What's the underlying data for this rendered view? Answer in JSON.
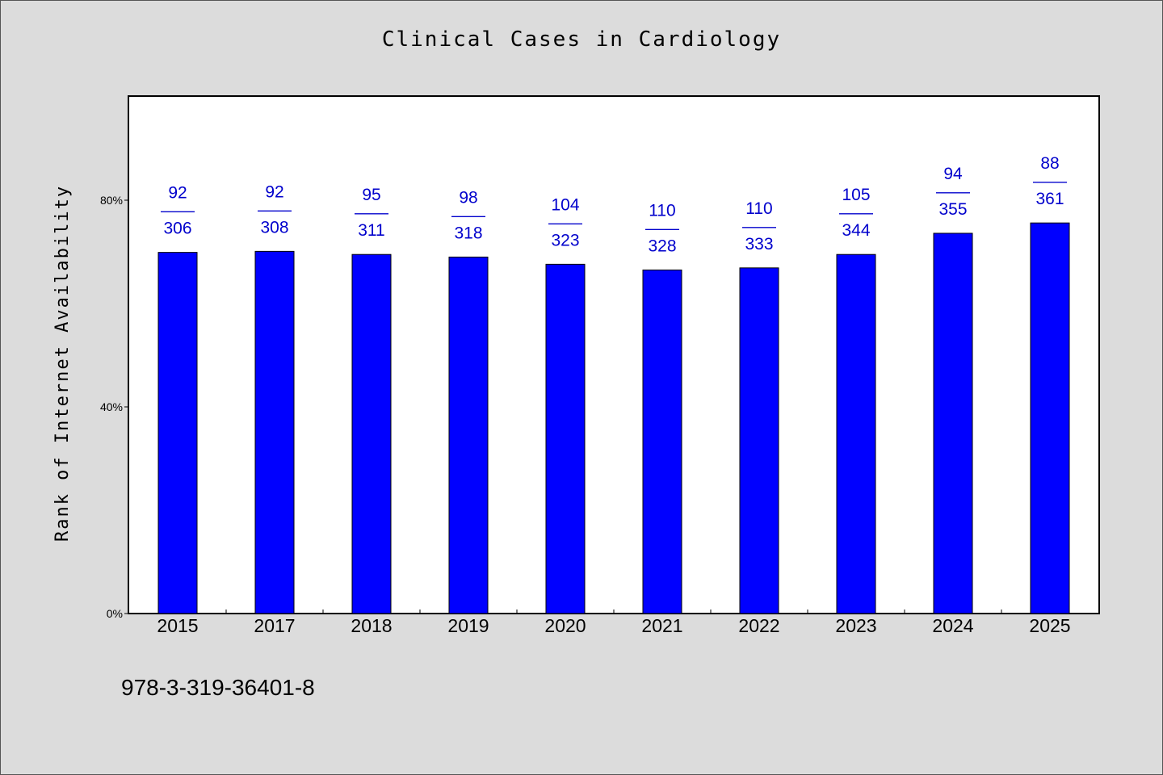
{
  "chart_data": {
    "type": "bar",
    "title": "Clinical Cases in Cardiology",
    "ylabel": "Rank of Internet Availability",
    "xlabel": "",
    "ylim": [
      0,
      100
    ],
    "y_ticks": [
      {
        "value": 0,
        "label": "0%"
      },
      {
        "value": 40,
        "label": "40%"
      },
      {
        "value": 80,
        "label": "80%"
      }
    ],
    "categories": [
      "2015",
      "2017",
      "2018",
      "2019",
      "2020",
      "2021",
      "2022",
      "2023",
      "2024",
      "2025"
    ],
    "values": [
      69.9,
      70.1,
      69.5,
      69.0,
      67.6,
      66.5,
      66.9,
      69.5,
      73.6,
      75.6
    ],
    "labels_top": [
      "92",
      "92",
      "95",
      "98",
      "104",
      "110",
      "110",
      "105",
      "94",
      "88"
    ],
    "labels_sep": "——",
    "labels_bottom": [
      "306",
      "308",
      "311",
      "318",
      "323",
      "328",
      "333",
      "344",
      "355",
      "361"
    ],
    "bar_color": "#0000ff",
    "label_color": "#0000cc",
    "grid": false,
    "legend": "none"
  },
  "footer": {
    "isbn": "978-3-319-36401-8"
  }
}
